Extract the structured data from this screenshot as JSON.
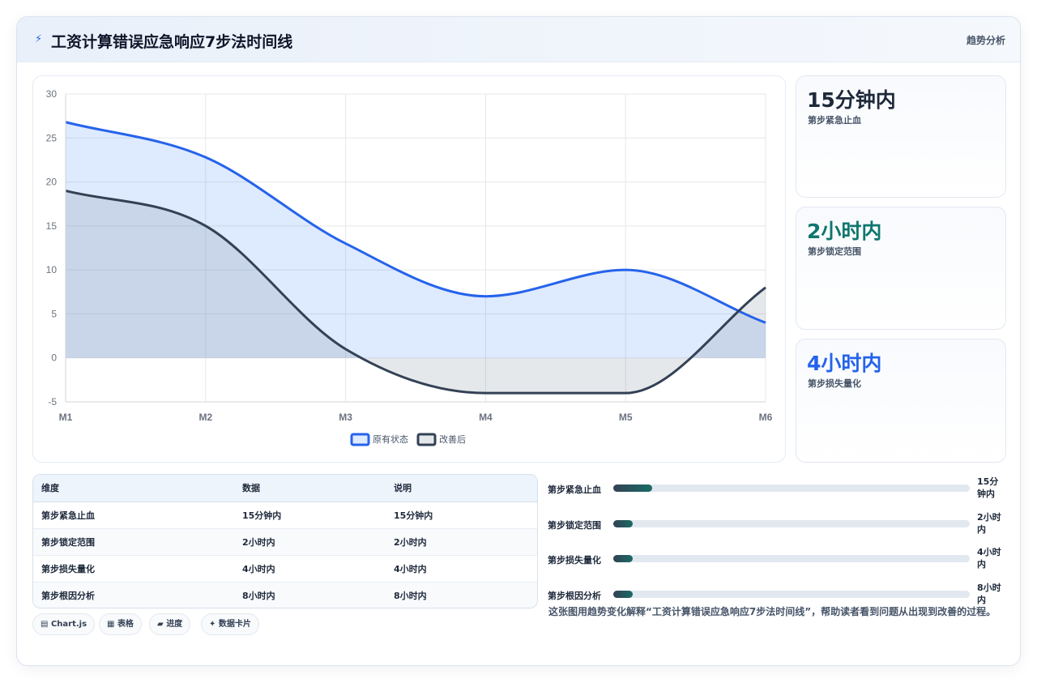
{
  "header": {
    "icon": "lightning-icon",
    "title": "工资计算错误应急响应7步法时间线",
    "tag": "趋势分析"
  },
  "chart_data": {
    "type": "area",
    "categories": [
      "M1",
      "M2",
      "M3",
      "M4",
      "M5",
      "M6"
    ],
    "ylim": [
      -5,
      30
    ],
    "yticks": [
      30,
      25,
      20,
      15,
      10,
      5,
      0,
      -5
    ],
    "grid": true,
    "legend_position": "bottom",
    "series": [
      {
        "name": "原有状态",
        "values": [
          26.8,
          22.8,
          13,
          7,
          10,
          4
        ],
        "color": "#2563eb",
        "fill": "rgba(59,130,246,0.17)"
      },
      {
        "name": "改善后",
        "values": [
          19,
          15,
          1,
          -4,
          -4,
          8
        ],
        "color": "#334155",
        "fill": "rgba(100,116,139,0.17)"
      }
    ]
  },
  "stats": [
    {
      "value": "15分钟内",
      "label": "第步紧急止血",
      "color": "#1e293b"
    },
    {
      "value": "2小时内",
      "label": "第步锁定范围",
      "color": "#0f766e"
    },
    {
      "value": "4小时内",
      "label": "第步损失量化",
      "color": "#2563eb"
    }
  ],
  "table": {
    "headers": [
      "维度",
      "数据",
      "说明"
    ],
    "rows": [
      [
        "第步紧急止血",
        "15分钟内",
        "15分钟内"
      ],
      [
        "第步锁定范围",
        "2小时内",
        "2小时内"
      ],
      [
        "第步损失量化",
        "4小时内",
        "4小时内"
      ],
      [
        "第步根因分析",
        "8小时内",
        "8小时内"
      ]
    ]
  },
  "progress": [
    {
      "label": "第步紧急止血",
      "value": "15分钟内",
      "fraction": 0.11
    },
    {
      "label": "第步锁定范围",
      "value": "2小时内",
      "fraction": 0.055
    },
    {
      "label": "第步损失量化",
      "value": "4小时内",
      "fraction": 0.055
    },
    {
      "label": "第步根因分析",
      "value": "8小时内",
      "fraction": 0.055
    }
  ],
  "description": "这张图用趋势变化解释“工资计算错误应急响应7步法时间线”，帮助读者看到问题从出现到改善的过程。",
  "pills": [
    {
      "icon": "chart-icon",
      "glyph": "▤",
      "label": "Chart.js"
    },
    {
      "icon": "table-icon",
      "glyph": "▦",
      "label": "表格"
    },
    {
      "icon": "progress-icon",
      "glyph": "▰",
      "label": "进度"
    },
    {
      "icon": "sparkle-icon",
      "glyph": "✦",
      "label": "数据卡片"
    }
  ]
}
